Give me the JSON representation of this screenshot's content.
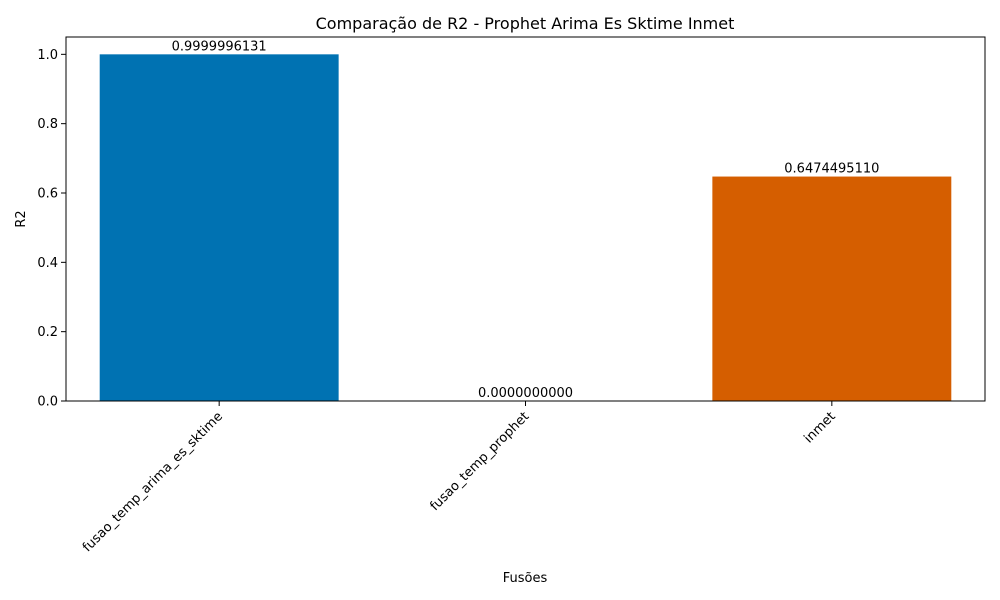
{
  "chart_data": {
    "type": "bar",
    "title": "Comparação de R2 - Prophet Arima Es Sktime Inmet",
    "xlabel": "Fusões",
    "ylabel": "R2",
    "categories": [
      "fusao_temp_arima_es_sktime",
      "fusao_temp_prophet",
      "inmet"
    ],
    "values": [
      0.9999996131,
      0.0,
      0.647449511
    ],
    "value_labels": [
      "0.9999996131",
      "0.0000000000",
      "0.6474495110"
    ],
    "colors": [
      "#0072b2",
      "#009e73",
      "#d55e00"
    ],
    "ylim": [
      0,
      1.05
    ],
    "yticks": [
      0.0,
      0.2,
      0.4,
      0.6,
      0.8,
      1.0
    ],
    "ytick_labels": [
      "0.0",
      "0.2",
      "0.4",
      "0.6",
      "0.8",
      "1.0"
    ],
    "grid": false,
    "legend": "none"
  }
}
